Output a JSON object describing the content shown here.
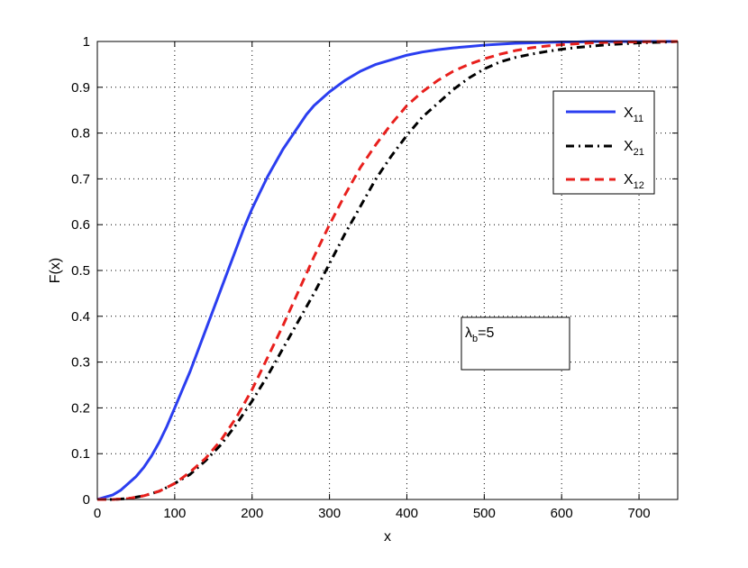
{
  "chart_data": {
    "type": "line",
    "title": "",
    "xlabel": "x",
    "ylabel": "F(x)",
    "xlim": [
      0,
      750
    ],
    "ylim": [
      0,
      1
    ],
    "x_ticks": [
      0,
      100,
      200,
      300,
      400,
      500,
      600,
      700
    ],
    "y_ticks": [
      0,
      0.1,
      0.2,
      0.3,
      0.4,
      0.5,
      0.6,
      0.7,
      0.8,
      0.9,
      1
    ],
    "x_tick_labels": [
      "0",
      "100",
      "200",
      "300",
      "400",
      "500",
      "600",
      "700"
    ],
    "y_tick_labels": [
      "0",
      "0.1",
      "0.2",
      "0.3",
      "0.4",
      "0.5",
      "0.6",
      "0.7",
      "0.8",
      "0.9",
      "1"
    ],
    "grid": true,
    "legend_position": "top-right",
    "series": [
      {
        "name": "X11",
        "label_main": "X",
        "label_sub": "11",
        "color": "#2b3ef0",
        "style": "solid",
        "x": [
          0,
          10,
          20,
          30,
          40,
          50,
          60,
          70,
          80,
          90,
          100,
          110,
          120,
          130,
          140,
          150,
          160,
          170,
          180,
          190,
          200,
          210,
          220,
          230,
          240,
          250,
          260,
          270,
          280,
          290,
          300,
          320,
          340,
          360,
          380,
          400,
          420,
          440,
          460,
          480,
          500,
          520,
          540,
          560,
          580,
          600,
          620,
          640,
          660,
          680,
          700,
          720,
          740,
          750
        ],
        "y": [
          0,
          0.005,
          0.01,
          0.02,
          0.035,
          0.05,
          0.07,
          0.095,
          0.125,
          0.16,
          0.2,
          0.24,
          0.28,
          0.325,
          0.37,
          0.415,
          0.46,
          0.505,
          0.55,
          0.595,
          0.635,
          0.67,
          0.705,
          0.735,
          0.765,
          0.79,
          0.815,
          0.84,
          0.86,
          0.875,
          0.89,
          0.915,
          0.935,
          0.95,
          0.96,
          0.97,
          0.977,
          0.982,
          0.986,
          0.989,
          0.992,
          0.994,
          0.996,
          0.997,
          0.998,
          0.999,
          0.999,
          1,
          1,
          1,
          1,
          1,
          1,
          1
        ]
      },
      {
        "name": "X21",
        "label_main": "X",
        "label_sub": "21",
        "color": "#000000",
        "style": "dashdot",
        "x": [
          0,
          20,
          40,
          60,
          80,
          100,
          120,
          140,
          160,
          180,
          200,
          220,
          240,
          260,
          280,
          300,
          320,
          340,
          360,
          380,
          400,
          420,
          440,
          460,
          480,
          500,
          520,
          540,
          560,
          580,
          600,
          620,
          640,
          660,
          680,
          700,
          720,
          740,
          750
        ],
        "y": [
          0,
          0,
          0.002,
          0.008,
          0.018,
          0.035,
          0.055,
          0.085,
          0.12,
          0.165,
          0.215,
          0.27,
          0.33,
          0.39,
          0.45,
          0.515,
          0.58,
          0.64,
          0.7,
          0.75,
          0.795,
          0.835,
          0.865,
          0.895,
          0.92,
          0.94,
          0.955,
          0.965,
          0.972,
          0.978,
          0.983,
          0.987,
          0.99,
          0.993,
          0.995,
          0.997,
          0.998,
          0.999,
          1
        ]
      },
      {
        "name": "X12",
        "label_main": "X",
        "label_sub": "12",
        "color": "#e8201d",
        "style": "dashed",
        "x": [
          0,
          20,
          40,
          60,
          80,
          100,
          120,
          140,
          160,
          180,
          200,
          220,
          240,
          260,
          280,
          300,
          320,
          340,
          360,
          380,
          400,
          420,
          440,
          460,
          480,
          500,
          520,
          540,
          560,
          580,
          600,
          620,
          640,
          660,
          680,
          700,
          720,
          740,
          750
        ],
        "y": [
          0,
          0,
          0.002,
          0.008,
          0.018,
          0.035,
          0.06,
          0.09,
          0.13,
          0.18,
          0.24,
          0.31,
          0.38,
          0.455,
          0.53,
          0.6,
          0.665,
          0.725,
          0.775,
          0.82,
          0.86,
          0.89,
          0.915,
          0.935,
          0.95,
          0.962,
          0.972,
          0.98,
          0.986,
          0.99,
          0.993,
          0.995,
          0.997,
          0.998,
          0.999,
          0.999,
          1,
          1,
          1
        ]
      }
    ],
    "annotation": {
      "symbol": "λ",
      "subscript": "b",
      "text": "=5"
    }
  }
}
